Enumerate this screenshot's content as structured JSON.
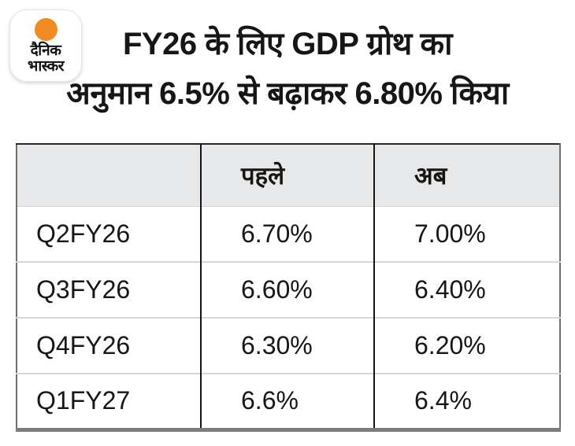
{
  "brand": {
    "name_line1": "दैनिक",
    "name_line2": "भास्कर",
    "logo_dot": "sun-orange-dot"
  },
  "title": {
    "line1": "FY26 के लिए GDP ग्रोथ का",
    "line2": "अनुमान 6.5% से बढ़ाकर 6.80% किया"
  },
  "table": {
    "headers": [
      "",
      "पहले",
      "अब"
    ],
    "rows": [
      {
        "quarter": "Q2FY26",
        "before": "6.70%",
        "now": "7.00%"
      },
      {
        "quarter": "Q3FY26",
        "before": "6.60%",
        "now": "6.40%"
      },
      {
        "quarter": "Q4FY26",
        "before": "6.30%",
        "now": "6.20%"
      },
      {
        "quarter": "Q1FY27",
        "before": "6.6%",
        "now": "6.4%"
      }
    ]
  },
  "chart_data": {
    "type": "table",
    "title": "FY26 के लिए GDP ग्रोथ का अनुमान 6.5% से बढ़ाकर 6.80% किया",
    "columns": [
      "",
      "पहले",
      "अब"
    ],
    "rows": [
      [
        "Q2FY26",
        "6.70%",
        "7.00%"
      ],
      [
        "Q3FY26",
        "6.60%",
        "6.40%"
      ],
      [
        "Q4FY26",
        "6.30%",
        "6.20%"
      ],
      [
        "Q1FY27",
        "6.6%",
        "6.4%"
      ]
    ],
    "notes": "GDP growth estimate for FY26 raised from 6.5% to 6.80%; quarterly estimates before vs now"
  },
  "colors": {
    "accent_orange": "#F08A21",
    "header_bg": "#E7E8EA",
    "text_color": "#161616",
    "outer_border": "#6F6F6F",
    "bottom_border": "#7D7D7D",
    "col_divider": "#161616",
    "row_divider": "#D6D6D6",
    "canvas_bg": "#FFFFFF"
  }
}
